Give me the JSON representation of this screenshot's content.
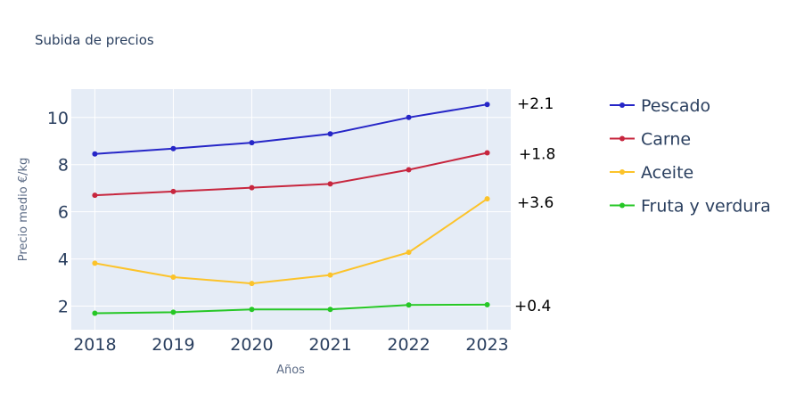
{
  "chart_data": {
    "type": "line",
    "title": "Subida de precios",
    "xlabel": "Años",
    "ylabel": "Precio medio  €/kg",
    "x": [
      2018,
      2019,
      2020,
      2021,
      2022,
      2023
    ],
    "x_ticks": [
      "2018",
      "2019",
      "2020",
      "2021",
      "2022",
      "2023"
    ],
    "y_ticks": [
      2,
      4,
      6,
      8,
      10
    ],
    "xlim": [
      2017.7,
      2023.3
    ],
    "ylim": [
      1.0,
      11.2
    ],
    "grid": true,
    "legend_position": "right",
    "plot_background": "#e5ecf6",
    "series": [
      {
        "name": "Pescado",
        "color": "#2626c7",
        "values": [
          8.45,
          8.68,
          8.93,
          9.3,
          10.0,
          10.55
        ],
        "annotation": "+2.1"
      },
      {
        "name": "Carne",
        "color": "#c7263e",
        "values": [
          6.7,
          6.86,
          7.02,
          7.18,
          7.78,
          8.5
        ],
        "annotation": "+1.8"
      },
      {
        "name": "Aceite",
        "color": "#fcc32a",
        "values": [
          3.82,
          3.23,
          2.96,
          3.32,
          4.28,
          6.55
        ],
        "annotation": "+3.6"
      },
      {
        "name": "Fruta y verdura",
        "color": "#26c726",
        "values": [
          1.7,
          1.74,
          1.86,
          1.86,
          2.05,
          2.06
        ],
        "annotation": "+0.4"
      }
    ]
  }
}
